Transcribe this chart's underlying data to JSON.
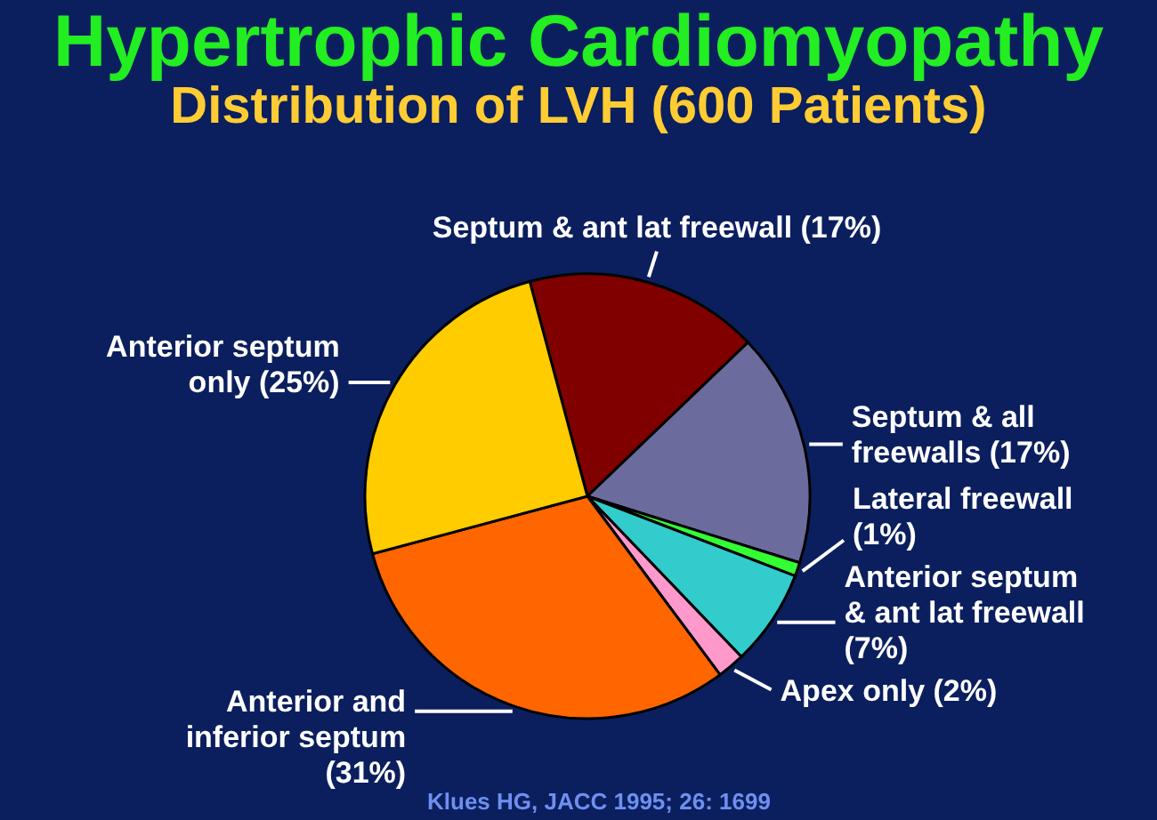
{
  "chart_data": {
    "type": "pie",
    "title": "Hypertrophic Cardiomyopathy",
    "subtitle": "Distribution of LVH (600 Patients)",
    "categories": [
      "Septum & ant lat freewall",
      "Septum & all freewalls",
      "Lateral freewall",
      "Anterior septum & ant lat freewall",
      "Apex only",
      "Anterior and inferior septum",
      "Anterior septum only"
    ],
    "values": [
      17,
      17,
      1,
      7,
      2,
      31,
      25
    ],
    "value_labels": [
      "(17%)",
      "(17%)",
      "(1%)",
      "(7%)",
      "(2%)",
      "(31%)",
      "(25%)"
    ],
    "colors": [
      "#800000",
      "#6b6b9e",
      "#33ff33",
      "#33cccc",
      "#ff99cc",
      "#ff6600",
      "#ffcc00"
    ],
    "annotations": [
      "Klues HG, JACC 1995; 26: 1699"
    ]
  }
}
